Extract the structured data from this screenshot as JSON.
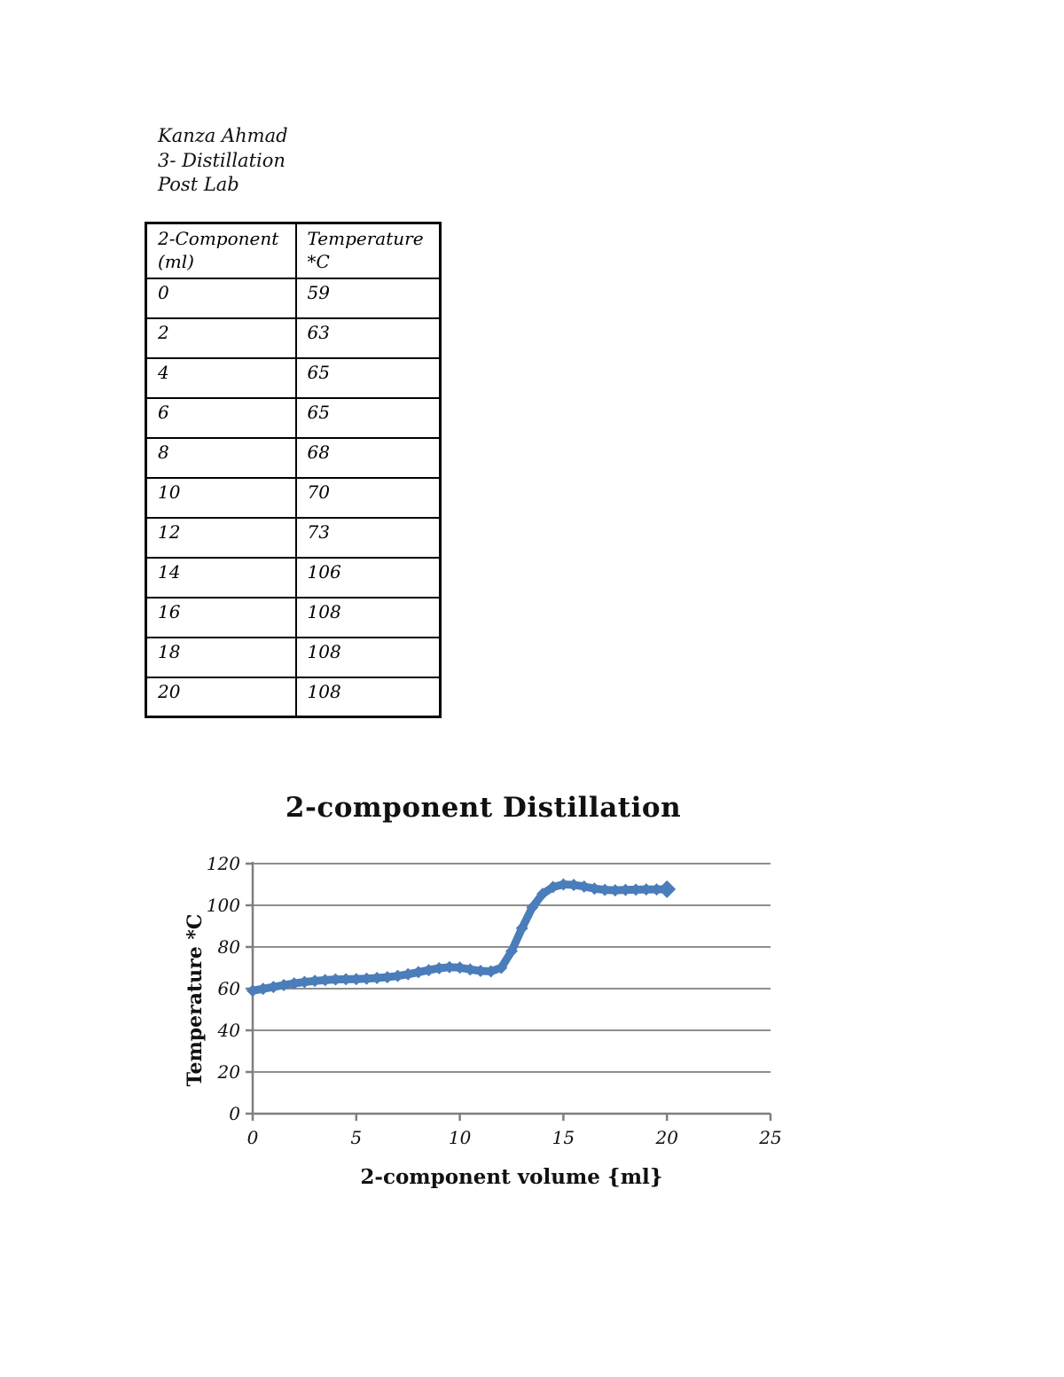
{
  "page": {
    "header_lines": [
      "Kanza Ahmad",
      "3- Distillation",
      "Post Lab"
    ]
  },
  "table": {
    "headers": [
      "2-Component\n(ml)",
      "Temperature\n*C"
    ],
    "rows": [
      [
        "0",
        "59"
      ],
      [
        "2",
        "63"
      ],
      [
        "4",
        "65"
      ],
      [
        "6",
        "65"
      ],
      [
        "8",
        "68"
      ],
      [
        "10",
        "70"
      ],
      [
        "12",
        "73"
      ],
      [
        "14",
        "106"
      ],
      [
        "16",
        "108"
      ],
      [
        "18",
        "108"
      ],
      [
        "20",
        "108"
      ]
    ]
  },
  "chart_data": {
    "type": "line",
    "title": "2-component Distillation",
    "xlabel": "2-component volume {ml}",
    "ylabel": "Temperature *C",
    "xlim": [
      0,
      25
    ],
    "ylim": [
      0,
      120
    ],
    "x_ticks": [
      0,
      5,
      10,
      15,
      20,
      25
    ],
    "y_ticks": [
      0,
      20,
      40,
      60,
      80,
      100,
      120
    ],
    "grid": "horizontal",
    "legend": "none",
    "line_color": "#4a7dba",
    "grid_color": "#8f8f8f",
    "axis_color": "#7f7f7f",
    "series": [
      {
        "name": "Temperature *C",
        "x": [
          0,
          2,
          4,
          6,
          8,
          10,
          12,
          14,
          16,
          18,
          20
        ],
        "y": [
          59,
          63,
          65,
          65,
          68,
          70,
          73,
          106,
          108,
          108,
          108
        ]
      }
    ],
    "smoothed_points": [
      [
        0,
        59
      ],
      [
        0.5,
        59.9
      ],
      [
        1,
        60.8
      ],
      [
        1.5,
        61.7
      ],
      [
        2,
        62.5
      ],
      [
        2.5,
        63.2
      ],
      [
        3,
        63.7
      ],
      [
        3.5,
        64.1
      ],
      [
        4,
        64.4
      ],
      [
        4.5,
        64.5
      ],
      [
        5,
        64.6
      ],
      [
        5.5,
        64.8
      ],
      [
        6,
        65.1
      ],
      [
        6.5,
        65.5
      ],
      [
        7,
        66.1
      ],
      [
        7.5,
        66.9
      ],
      [
        8,
        67.9
      ],
      [
        8.5,
        68.9
      ],
      [
        9,
        69.8
      ],
      [
        9.5,
        70.3
      ],
      [
        10,
        70.1
      ],
      [
        10.5,
        69.2
      ],
      [
        11,
        68.5
      ],
      [
        11.5,
        68.3
      ],
      [
        12,
        70
      ],
      [
        12.5,
        78
      ],
      [
        13,
        89
      ],
      [
        13.5,
        99
      ],
      [
        14,
        105.5
      ],
      [
        14.5,
        108.8
      ],
      [
        15,
        110
      ],
      [
        15.5,
        109.8
      ],
      [
        16,
        109
      ],
      [
        16.5,
        108
      ],
      [
        17,
        107.4
      ],
      [
        17.5,
        107.2
      ],
      [
        18,
        107.4
      ],
      [
        18.5,
        107.5
      ],
      [
        19,
        107.6
      ],
      [
        19.5,
        107.6
      ],
      [
        20,
        107.7
      ]
    ]
  }
}
